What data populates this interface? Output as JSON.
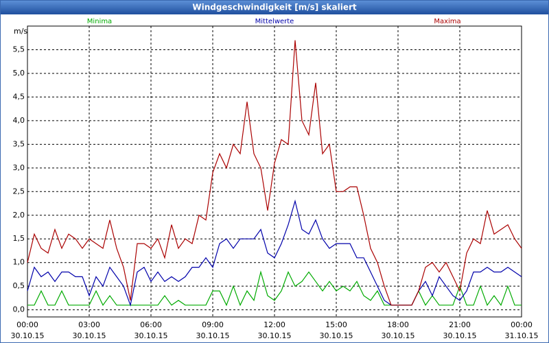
{
  "chart_data": {
    "type": "line",
    "title": "Windgeschwindigkeit [m/s] skaliert",
    "y_label": "m/s",
    "legend": "top",
    "grid": true,
    "x": [
      "30.10.15 00:00",
      "30.10.15 00:20",
      "30.10.15 00:40",
      "30.10.15 01:00",
      "30.10.15 01:20",
      "30.10.15 01:40",
      "30.10.15 02:00",
      "30.10.15 02:20",
      "30.10.15 02:40",
      "30.10.15 03:00",
      "30.10.15 03:20",
      "30.10.15 03:40",
      "30.10.15 04:00",
      "30.10.15 04:20",
      "30.10.15 04:40",
      "30.10.15 05:00",
      "30.10.15 05:20",
      "30.10.15 05:40",
      "30.10.15 06:00",
      "30.10.15 06:20",
      "30.10.15 06:40",
      "30.10.15 07:00",
      "30.10.15 07:20",
      "30.10.15 07:40",
      "30.10.15 08:00",
      "30.10.15 08:20",
      "30.10.15 08:40",
      "30.10.15 09:00",
      "30.10.15 09:20",
      "30.10.15 09:40",
      "30.10.15 10:00",
      "30.10.15 10:20",
      "30.10.15 10:40",
      "30.10.15 11:00",
      "30.10.15 11:20",
      "30.10.15 11:40",
      "30.10.15 12:00",
      "30.10.15 12:20",
      "30.10.15 12:40",
      "30.10.15 13:00",
      "30.10.15 13:20",
      "30.10.15 13:40",
      "30.10.15 14:00",
      "30.10.15 14:20",
      "30.10.15 14:40",
      "30.10.15 15:00",
      "30.10.15 15:20",
      "30.10.15 15:40",
      "30.10.15 16:00",
      "30.10.15 16:20",
      "30.10.15 16:40",
      "30.10.15 17:00",
      "30.10.15 17:20",
      "30.10.15 17:40",
      "30.10.15 18:00",
      "30.10.15 18:20",
      "30.10.15 18:40",
      "30.10.15 19:00",
      "30.10.15 19:20",
      "30.10.15 19:40",
      "30.10.15 20:00",
      "30.10.15 20:20",
      "30.10.15 20:40",
      "30.10.15 21:00",
      "30.10.15 21:20",
      "30.10.15 21:40",
      "30.10.15 22:00",
      "30.10.15 22:20",
      "30.10.15 22:40",
      "30.10.15 23:00",
      "30.10.15 23:20",
      "30.10.15 23:40",
      "31.10.15 00:00"
    ],
    "series": [
      {
        "name": "Minima",
        "color": "#00aa00",
        "values": [
          0.1,
          0.1,
          0.4,
          0.1,
          0.1,
          0.4,
          0.1,
          0.1,
          0.1,
          0.1,
          0.4,
          0.1,
          0.3,
          0.1,
          0.1,
          0.1,
          0.1,
          0.1,
          0.1,
          0.1,
          0.3,
          0.1,
          0.2,
          0.1,
          0.1,
          0.1,
          0.1,
          0.4,
          0.4,
          0.1,
          0.5,
          0.1,
          0.4,
          0.2,
          0.8,
          0.3,
          0.2,
          0.4,
          0.8,
          0.5,
          0.6,
          0.8,
          0.6,
          0.4,
          0.6,
          0.4,
          0.5,
          0.4,
          0.6,
          0.3,
          0.2,
          0.4,
          0.1,
          0.1,
          0.1,
          0.1,
          0.1,
          0.4,
          0.1,
          0.3,
          0.1,
          0.1,
          0.1,
          0.5,
          0.1,
          0.1,
          0.5,
          0.1,
          0.3,
          0.1,
          0.5,
          0.1,
          0.1
        ]
      },
      {
        "name": "Mittelwerte",
        "color": "#0000aa",
        "values": [
          0.4,
          0.9,
          0.7,
          0.8,
          0.6,
          0.8,
          0.8,
          0.7,
          0.7,
          0.3,
          0.7,
          0.5,
          0.9,
          0.7,
          0.5,
          0.1,
          0.8,
          0.9,
          0.6,
          0.8,
          0.6,
          0.7,
          0.6,
          0.7,
          0.9,
          0.9,
          1.1,
          0.9,
          1.4,
          1.5,
          1.3,
          1.5,
          1.5,
          1.5,
          1.7,
          1.2,
          1.1,
          1.4,
          1.8,
          2.3,
          1.7,
          1.6,
          1.9,
          1.5,
          1.3,
          1.4,
          1.4,
          1.4,
          1.1,
          1.1,
          0.8,
          0.5,
          0.2,
          0.1,
          0.1,
          0.1,
          0.1,
          0.4,
          0.6,
          0.3,
          0.7,
          0.5,
          0.3,
          0.2,
          0.4,
          0.8,
          0.8,
          0.9,
          0.8,
          0.8,
          0.9,
          0.8,
          0.7
        ]
      },
      {
        "name": "Maxima",
        "color": "#aa0000",
        "values": [
          1.0,
          1.6,
          1.3,
          1.2,
          1.7,
          1.3,
          1.6,
          1.5,
          1.3,
          1.5,
          1.4,
          1.3,
          1.9,
          1.3,
          0.9,
          0.2,
          1.4,
          1.4,
          1.3,
          1.5,
          1.1,
          1.8,
          1.3,
          1.5,
          1.4,
          2.0,
          1.9,
          2.9,
          3.3,
          3.0,
          3.5,
          3.3,
          4.4,
          3.3,
          3.0,
          2.1,
          3.1,
          3.6,
          3.5,
          5.7,
          4.0,
          3.7,
          4.8,
          3.3,
          3.5,
          2.5,
          2.5,
          2.6,
          2.6,
          2.0,
          1.3,
          1.0,
          0.5,
          0.1,
          0.1,
          0.1,
          0.1,
          0.4,
          0.9,
          1.0,
          0.8,
          1.0,
          0.7,
          0.4,
          1.2,
          1.5,
          1.4,
          2.1,
          1.6,
          1.7,
          1.8,
          1.5,
          1.3
        ]
      }
    ],
    "xlim": [
      "30.10.15 00:00",
      "31.10.15 00:00"
    ],
    "xticks": [
      {
        "value": "30.10.15 00:00",
        "label": [
          "00:00",
          "30.10.15"
        ]
      },
      {
        "value": "30.10.15 03:00",
        "label": [
          "03:00",
          "30.10.15"
        ]
      },
      {
        "value": "30.10.15 06:00",
        "label": [
          "06:00",
          "30.10.15"
        ]
      },
      {
        "value": "30.10.15 09:00",
        "label": [
          "09:00",
          "30.10.15"
        ]
      },
      {
        "value": "30.10.15 12:00",
        "label": [
          "12:00",
          "30.10.15"
        ]
      },
      {
        "value": "30.10.15 15:00",
        "label": [
          "15:00",
          "30.10.15"
        ]
      },
      {
        "value": "30.10.15 18:00",
        "label": [
          "18:00",
          "30.10.15"
        ]
      },
      {
        "value": "30.10.15 21:00",
        "label": [
          "21:00",
          "30.10.15"
        ]
      },
      {
        "value": "31.10.15 00:00",
        "label": [
          "00:00",
          "31.10.15"
        ]
      }
    ],
    "ylim": [
      -0.15,
      6.0
    ],
    "yticks": [
      {
        "value": 0,
        "label": "0,0"
      },
      {
        "value": 0.5,
        "label": "0,5"
      },
      {
        "value": 1,
        "label": "1,0"
      },
      {
        "value": 1.5,
        "label": "1,5"
      },
      {
        "value": 2,
        "label": "2,0"
      },
      {
        "value": 2.5,
        "label": "2,5"
      },
      {
        "value": 3,
        "label": "3,0"
      },
      {
        "value": 3.5,
        "label": "3,5"
      },
      {
        "value": 4,
        "label": "4,0"
      },
      {
        "value": 4.5,
        "label": "4,5"
      },
      {
        "value": 5,
        "label": "5,0"
      },
      {
        "value": 5.5,
        "label": "5,5"
      }
    ]
  }
}
